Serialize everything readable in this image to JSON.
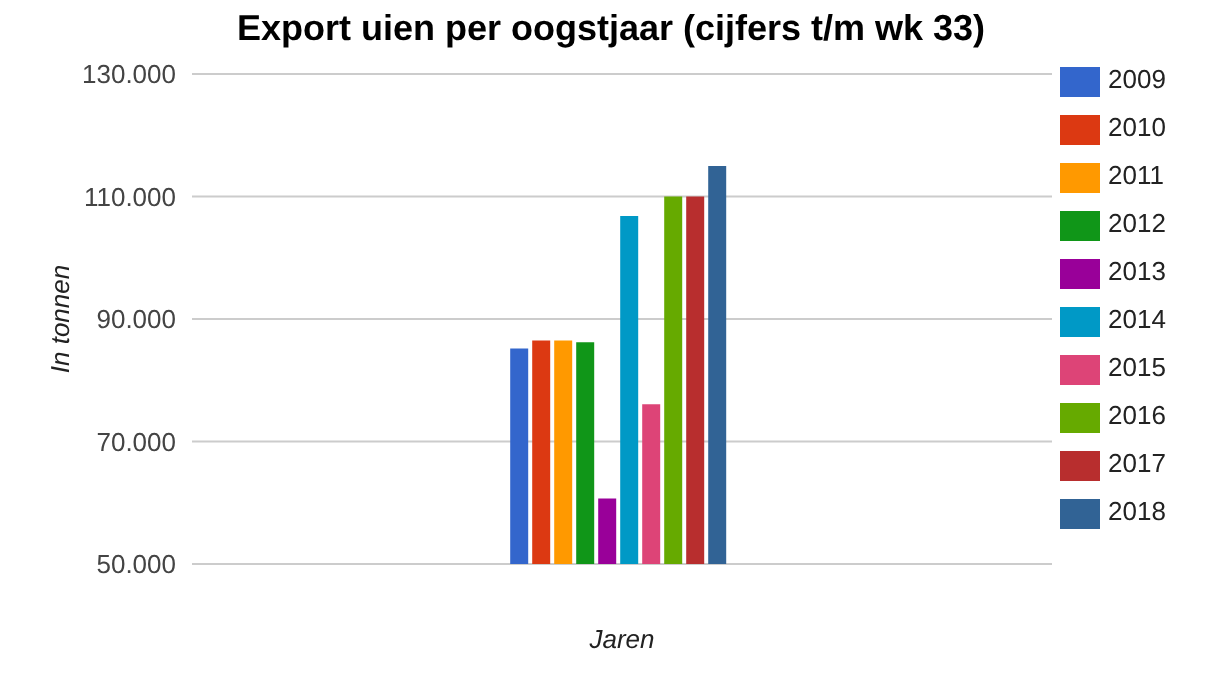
{
  "chart_data": {
    "type": "bar",
    "title": "Export uien per oogstjaar (cijfers t/m wk 33)",
    "xlabel": "Jaren",
    "ylabel": "In tonnen",
    "categories": [
      null
    ],
    "series": [
      {
        "name": "2009",
        "color": "#3366cc",
        "values": [
          85200
        ]
      },
      {
        "name": "2010",
        "color": "#dc3912",
        "values": [
          86500
        ]
      },
      {
        "name": "2011",
        "color": "#ff9900",
        "values": [
          86500
        ]
      },
      {
        "name": "2012",
        "color": "#109618",
        "values": [
          86200
        ]
      },
      {
        "name": "2013",
        "color": "#990099",
        "values": [
          60700
        ]
      },
      {
        "name": "2014",
        "color": "#0099c6",
        "values": [
          106800
        ]
      },
      {
        "name": "2015",
        "color": "#dd4477",
        "values": [
          76100
        ]
      },
      {
        "name": "2016",
        "color": "#66aa00",
        "values": [
          110000
        ]
      },
      {
        "name": "2017",
        "color": "#b82e2e",
        "values": [
          110000
        ]
      },
      {
        "name": "2018",
        "color": "#316395",
        "values": [
          115000
        ]
      }
    ],
    "ylim": [
      50000,
      130000
    ],
    "yticks": [
      {
        "value": 50000,
        "label": "50.000"
      },
      {
        "value": 70000,
        "label": "70.000"
      },
      {
        "value": 90000,
        "label": "90.000"
      },
      {
        "value": 110000,
        "label": "110.000"
      },
      {
        "value": 130000,
        "label": "130.000"
      }
    ],
    "grid": "y",
    "legend": "right"
  }
}
